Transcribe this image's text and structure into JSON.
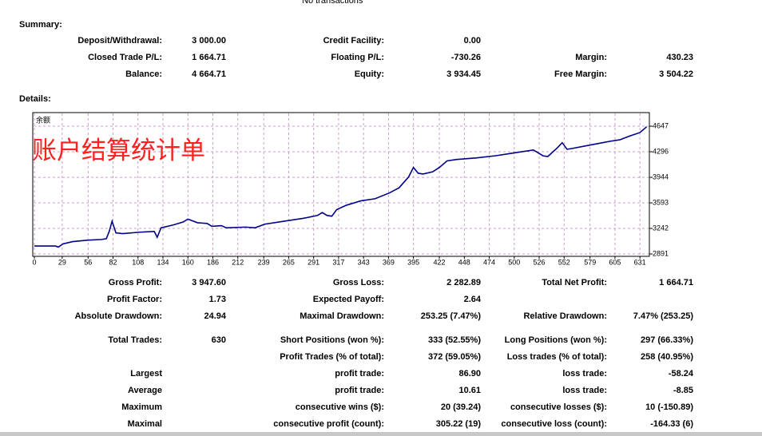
{
  "header": {
    "note": "No transactions"
  },
  "summary": {
    "title": "Summary:",
    "rows": [
      {
        "left": {
          "label": "Deposit/Withdrawal:",
          "value": "3 000.00"
        },
        "middle": {
          "label": "Credit Facility:",
          "value": "0.00"
        }
      },
      {
        "left": {
          "label": "Closed Trade P/L:",
          "value": "1 664.71"
        },
        "middle": {
          "label": "Floating P/L:",
          "value": "-730.26"
        },
        "right": {
          "label": "Margin:",
          "value": "430.23"
        }
      },
      {
        "left": {
          "label": "Balance:",
          "value": "4 664.71"
        },
        "middle": {
          "label": "Equity:",
          "value": "3 934.45"
        },
        "right": {
          "label": "Free Margin:",
          "value": "3 504.22"
        }
      }
    ]
  },
  "details": {
    "title": "Details:",
    "rows": [
      {
        "left": {
          "label": "Gross Profit:",
          "value": "3 947.60"
        },
        "middle": {
          "label": "Gross Loss:",
          "value": "2 282.89"
        },
        "right": {
          "label": "Total Net Profit:",
          "value": "1 664.71"
        }
      },
      {
        "left": {
          "label": "Profit Factor:",
          "value": "1.73"
        },
        "middle": {
          "label": "Expected Payoff:",
          "value": "2.64"
        }
      },
      {
        "left": {
          "label": "Absolute Drawdown:",
          "value": "24.94"
        },
        "middle": {
          "label": "Maximal Drawdown:",
          "value": "253.25 (7.47%)"
        },
        "right": {
          "label": "Relative Drawdown:",
          "value": "7.47% (253.25)"
        }
      },
      {
        "left": {
          "label": "Total Trades:",
          "value": "630"
        },
        "middle": {
          "label": "Short Positions (won %):",
          "value": "333 (52.55%)"
        },
        "right": {
          "label": "Long Positions (won %):",
          "value": "297 (66.33%)"
        }
      },
      {
        "middle": {
          "label": "Profit Trades (% of total):",
          "value": "372 (59.05%)"
        },
        "right": {
          "label": "Loss trades (% of total):",
          "value": "258 (40.95%)"
        }
      },
      {
        "left": {
          "label": "Largest"
        },
        "middle": {
          "label": "profit trade:",
          "value": "86.90"
        },
        "right": {
          "label": "loss trade:",
          "value": "-58.24"
        }
      },
      {
        "left": {
          "label": "Average"
        },
        "middle": {
          "label": "profit trade:",
          "value": "10.61"
        },
        "right": {
          "label": "loss trade:",
          "value": "-8.85"
        }
      },
      {
        "left": {
          "label": "Maximum"
        },
        "middle": {
          "label": "consecutive wins ($):",
          "value": "20 (39.24)"
        },
        "right": {
          "label": "consecutive losses ($):",
          "value": "10 (-150.89)"
        }
      },
      {
        "left": {
          "label": "Maximal"
        },
        "middle": {
          "label": "consecutive profit (count):",
          "value": "305.22 (19)"
        },
        "right": {
          "label": "consecutive loss (count):",
          "value": "-164.33 (6)"
        }
      }
    ]
  },
  "chart_data": {
    "type": "line",
    "legend_label": "余额",
    "overlay_title": "账户结算统计单",
    "x": [
      0,
      22,
      25,
      30,
      40,
      55,
      70,
      75,
      78,
      81,
      85,
      92,
      110,
      125,
      128,
      132,
      145,
      155,
      160,
      170,
      180,
      185,
      195,
      200,
      220,
      230,
      240,
      260,
      280,
      295,
      300,
      305,
      310,
      315,
      325,
      340,
      355,
      370,
      380,
      390,
      395,
      400,
      405,
      415,
      422,
      430,
      440,
      460,
      480,
      500,
      520,
      530,
      535,
      545,
      550,
      555,
      560,
      580,
      600,
      610,
      620,
      631,
      638
    ],
    "series": [
      {
        "name": "Balance",
        "color": "#00008b",
        "values": [
          3000,
          3000,
          2985,
          3030,
          3060,
          3080,
          3090,
          3100,
          3200,
          3340,
          3180,
          3170,
          3190,
          3200,
          3120,
          3250,
          3290,
          3330,
          3370,
          3320,
          3310,
          3270,
          3280,
          3250,
          3260,
          3250,
          3300,
          3340,
          3380,
          3420,
          3460,
          3420,
          3410,
          3500,
          3560,
          3620,
          3650,
          3730,
          3800,
          3950,
          4080,
          4000,
          3990,
          4020,
          4080,
          4170,
          4190,
          4210,
          4240,
          4280,
          4320,
          4240,
          4230,
          4350,
          4420,
          4330,
          4340,
          4390,
          4440,
          4460,
          4510,
          4560,
          4640
        ]
      }
    ],
    "xlim": [
      0,
      640
    ],
    "ylim": [
      2858,
      4834
    ],
    "xticks": [
      0,
      29,
      56,
      82,
      108,
      134,
      160,
      186,
      212,
      239,
      265,
      291,
      317,
      343,
      369,
      395,
      422,
      448,
      474,
      500,
      526,
      552,
      579,
      605,
      631
    ],
    "yticks": [
      2891,
      3242,
      3593,
      3944,
      4296,
      4647
    ],
    "grid": true
  }
}
